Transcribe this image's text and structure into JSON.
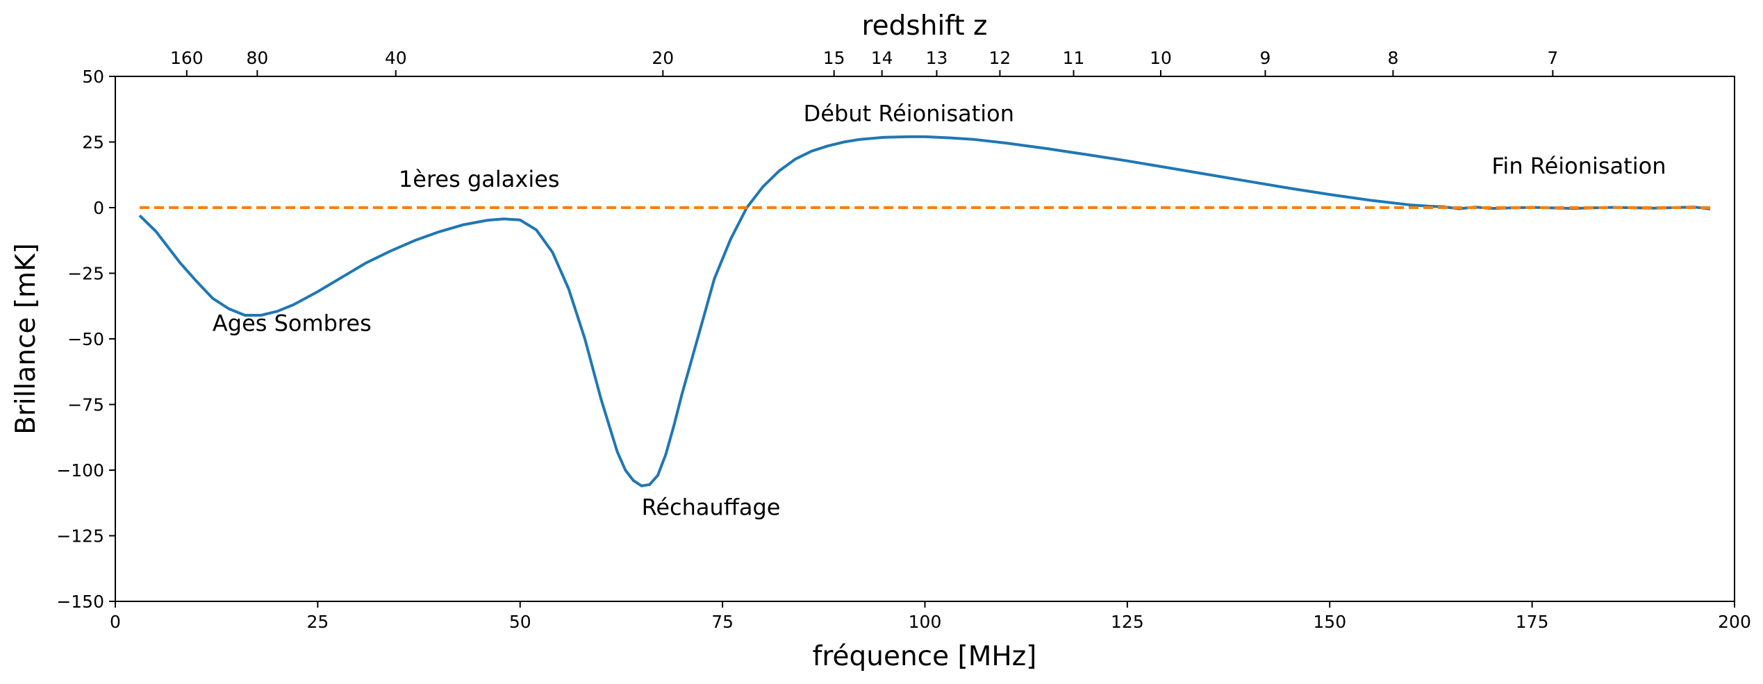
{
  "chart_data": {
    "type": "line",
    "xlabel": "fréquence [MHz]",
    "ylabel": "Brillance [mK]",
    "secondary_xlabel": "redshift z",
    "xlim": [
      0,
      200
    ],
    "ylim": [
      -150,
      50
    ],
    "x_ticks": [
      "0",
      "25",
      "50",
      "75",
      "100",
      "125",
      "150",
      "175",
      "200"
    ],
    "y_ticks": [
      "50",
      "25",
      "0",
      "−25",
      "−50",
      "−75",
      "−100",
      "−125",
      "−150"
    ],
    "secondary_x_ticks": [
      "160",
      "80",
      "40",
      "20",
      "15",
      "14",
      "13",
      "12",
      "11",
      "10",
      "9",
      "8",
      "7"
    ],
    "grid": false,
    "series": [
      {
        "color": "#1f77b4",
        "style": "solid",
        "x": [
          3,
          4,
          5,
          6,
          8,
          10,
          12,
          14,
          16,
          18,
          20,
          22,
          25,
          28,
          31,
          34,
          37,
          40,
          43,
          46,
          48,
          50,
          52,
          54,
          56,
          58,
          60,
          62,
          63,
          64,
          65,
          66,
          67,
          68,
          69,
          70,
          72,
          74,
          76,
          78,
          80,
          82,
          84,
          86,
          88,
          90,
          92,
          95,
          98,
          100,
          103,
          106,
          110,
          115,
          120,
          125,
          130,
          135,
          140,
          145,
          150,
          155,
          160,
          162,
          164,
          166,
          168,
          170,
          175,
          180,
          185,
          190,
          195,
          197
        ],
        "y": [
          -3,
          -6,
          -9,
          -13,
          -21,
          -28,
          -34.5,
          -38.5,
          -41,
          -41,
          -39.5,
          -37,
          -32,
          -26.5,
          -21,
          -16.5,
          -12.5,
          -9.2,
          -6.5,
          -4.8,
          -4.3,
          -4.7,
          -8.5,
          -17,
          -31,
          -50,
          -73,
          -93,
          -100,
          -104,
          -106,
          -105.5,
          -102,
          -94,
          -83,
          -71,
          -49,
          -27,
          -12,
          0,
          8,
          14,
          18.5,
          21.5,
          23.5,
          25,
          26,
          26.8,
          27,
          27,
          26.6,
          26,
          24.6,
          22.5,
          20.2,
          17.8,
          15.2,
          12.6,
          10,
          7.4,
          5,
          2.8,
          1,
          0.6,
          0.3,
          -0.4,
          0.2,
          -0.3,
          0.1,
          -0.3,
          0.1,
          -0.2,
          0.2,
          -0.5
        ]
      },
      {
        "color": "#ff7f0e",
        "style": "dashed",
        "x": [
          3,
          197
        ],
        "y": [
          0,
          0
        ]
      }
    ],
    "annotations": [
      {
        "text": "Ages Sombres",
        "x": 12,
        "y": -47
      },
      {
        "text": "1ères galaxies",
        "x": 35,
        "y": 8
      },
      {
        "text": "Réchauffage",
        "x": 65,
        "y": -117
      },
      {
        "text": "Début Réionisation",
        "x": 85,
        "y": 33
      },
      {
        "text": "Fin Réionisation",
        "x": 170,
        "y": 13
      }
    ]
  }
}
